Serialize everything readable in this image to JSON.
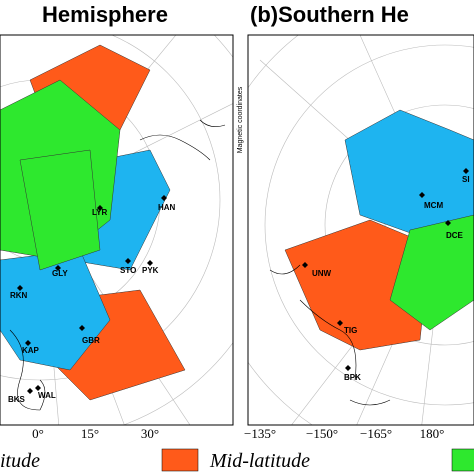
{
  "panels": [
    {
      "title": "Hemisphere",
      "stations": [
        "HAN",
        "LYR",
        "GLY",
        "STO",
        "PYK",
        "RKN",
        "KAP",
        "GBR",
        "BKS",
        "WAL"
      ],
      "lon_labels": [
        "0°",
        "15°",
        "30°"
      ]
    },
    {
      "title": "(b)Southern He",
      "side_label": "Magnetic coordinates",
      "stations": [
        "SI",
        "MCM",
        "DCE",
        "UNW",
        "TIG",
        "BPK"
      ],
      "lon_labels": [
        "−135°",
        "−150°",
        "−165°",
        "180°"
      ]
    }
  ],
  "legend": [
    {
      "label": "itude",
      "color": "#2ee82e"
    },
    {
      "label": "Mid-latitude",
      "color": "#ff5a1a"
    },
    {
      "label": null,
      "color": "#2ee82e"
    }
  ]
}
